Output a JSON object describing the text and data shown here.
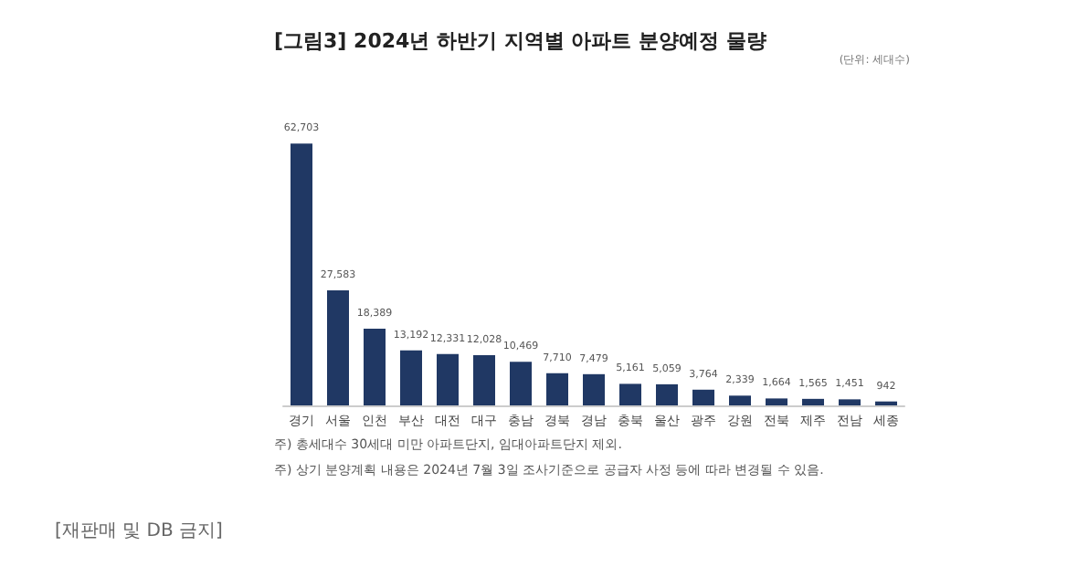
{
  "chart_data": {
    "type": "bar",
    "title": "[그림3] 2024년 하반기 지역별 아파트 분양예정 물량",
    "categories": [
      "경기",
      "서울",
      "인천",
      "부산",
      "대전",
      "대구",
      "충남",
      "경북",
      "경남",
      "충북",
      "울산",
      "광주",
      "강원",
      "전북",
      "제주",
      "전남",
      "세종"
    ],
    "values": [
      62703,
      27583,
      18389,
      13192,
      12331,
      12028,
      10469,
      7710,
      7479,
      5161,
      5059,
      3764,
      2339,
      1664,
      1565,
      1451,
      942
    ],
    "value_labels": [
      "62,703",
      "27,583",
      "18,389",
      "13,192",
      "12,331",
      "12,028",
      "10,469",
      "7,710",
      "7,479",
      "5,161",
      "5,059",
      "3,764",
      "2,339",
      "1,664",
      "1,565",
      "1,451",
      "942"
    ],
    "color": "#203864",
    "annotations": [
      "(단위: 세대수)",
      "주) 총세대수 30세대 미만 아파트단지, 임대아파트단지 제외.",
      "주) 상기 분양계획 내용은 2024년 7월 3일 조사기준으로 공급자 사정 등에 따라 변경될 수 있음.",
      "[재판매 및 DB 금지]"
    ]
  }
}
